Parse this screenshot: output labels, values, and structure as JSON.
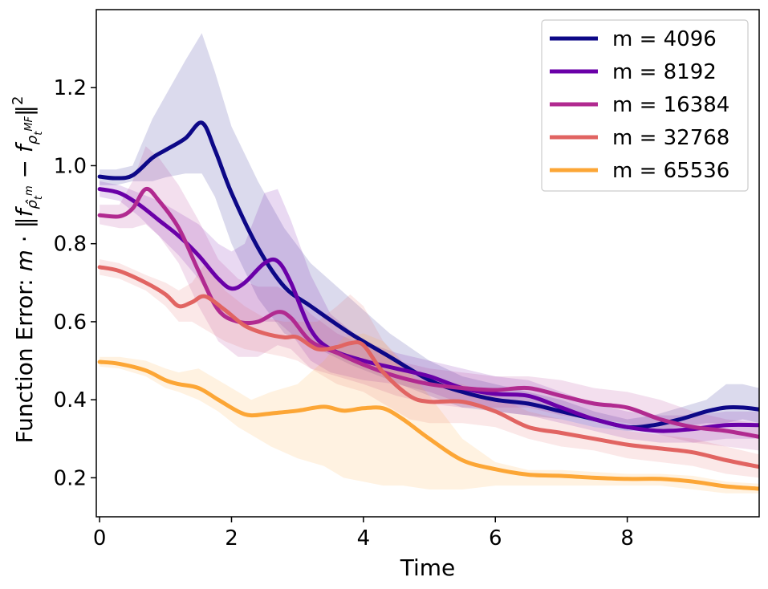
{
  "chart_data": {
    "type": "line",
    "title": "",
    "xlabel": "Time",
    "ylabel": "Function Error: m · ‖f_{ρ̂_t^m} − f_{ρ_t^{MF}}‖²",
    "ylabel_parts": {
      "prefix": "Function Error: ",
      "m": "m",
      "dot": " · ",
      "norm_open": "‖",
      "f1": "f",
      "rho1": "ρ̂",
      "rho1_sub": "t",
      "rho1_sup": "m",
      "minus": " − ",
      "f2": "f",
      "rho2": "ρ",
      "rho2_sub": "t",
      "rho2_sup": "MF",
      "norm_close": "‖",
      "square": "2"
    },
    "xlim": [
      -0.05,
      10.0
    ],
    "ylim": [
      0.1,
      1.4
    ],
    "xticks": [
      0,
      2,
      4,
      6,
      8
    ],
    "xtick_labels": [
      "0",
      "2",
      "4",
      "6",
      "8"
    ],
    "yticks": [
      0.2,
      0.4,
      0.6,
      0.8,
      1.0,
      1.2
    ],
    "ytick_labels": [
      "0.2",
      "0.4",
      "0.6",
      "0.8",
      "1.0",
      "1.2"
    ],
    "legend_position": "top-right",
    "series": [
      {
        "name": "m = 4096",
        "color": "#0d0887",
        "x": [
          0,
          0.25,
          0.5,
          0.8,
          1.0,
          1.3,
          1.55,
          1.75,
          2.0,
          2.4,
          2.8,
          3.2,
          3.8,
          4.4,
          5.0,
          5.5,
          6.0,
          6.5,
          7.0,
          7.5,
          8.0,
          8.4,
          8.8,
          9.2,
          9.5,
          9.75,
          10.0
        ],
        "y": [
          0.972,
          0.968,
          0.975,
          1.02,
          1.04,
          1.07,
          1.11,
          1.04,
          0.93,
          0.79,
          0.69,
          0.64,
          0.57,
          0.51,
          0.45,
          0.42,
          0.4,
          0.39,
          0.37,
          0.35,
          0.33,
          0.335,
          0.35,
          0.37,
          0.38,
          0.38,
          0.375
        ],
        "upper": [
          0.99,
          0.99,
          1.0,
          1.12,
          1.18,
          1.27,
          1.34,
          1.24,
          1.1,
          0.96,
          0.84,
          0.75,
          0.66,
          0.57,
          0.5,
          0.46,
          0.44,
          0.42,
          0.4,
          0.37,
          0.35,
          0.36,
          0.38,
          0.4,
          0.44,
          0.44,
          0.43
        ],
        "lower": [
          0.95,
          0.95,
          0.96,
          0.96,
          0.97,
          0.98,
          0.98,
          0.92,
          0.8,
          0.66,
          0.57,
          0.54,
          0.49,
          0.45,
          0.41,
          0.38,
          0.37,
          0.36,
          0.35,
          0.33,
          0.32,
          0.32,
          0.33,
          0.34,
          0.34,
          0.35,
          0.34
        ]
      },
      {
        "name": "m = 8192",
        "color": "#6a00a8",
        "x": [
          0,
          0.3,
          0.6,
          0.9,
          1.2,
          1.5,
          1.8,
          2.0,
          2.2,
          2.5,
          2.7,
          2.9,
          3.2,
          3.5,
          4.0,
          4.5,
          5.0,
          5.5,
          6.0,
          6.5,
          7.0,
          7.5,
          8.0,
          8.5,
          9.0,
          9.5,
          10.0
        ],
        "y": [
          0.94,
          0.93,
          0.9,
          0.86,
          0.82,
          0.77,
          0.71,
          0.685,
          0.7,
          0.75,
          0.755,
          0.7,
          0.58,
          0.53,
          0.5,
          0.48,
          0.46,
          0.43,
          0.415,
          0.41,
          0.38,
          0.35,
          0.33,
          0.32,
          0.325,
          0.335,
          0.335
        ],
        "upper": [
          0.96,
          0.95,
          0.93,
          0.91,
          0.88,
          0.85,
          0.8,
          0.78,
          0.8,
          0.93,
          0.94,
          0.86,
          0.72,
          0.62,
          0.55,
          0.52,
          0.5,
          0.48,
          0.46,
          0.45,
          0.42,
          0.39,
          0.37,
          0.36,
          0.36,
          0.37,
          0.37
        ],
        "lower": [
          0.92,
          0.91,
          0.87,
          0.82,
          0.77,
          0.71,
          0.63,
          0.6,
          0.6,
          0.6,
          0.6,
          0.57,
          0.5,
          0.47,
          0.45,
          0.44,
          0.42,
          0.39,
          0.37,
          0.36,
          0.34,
          0.32,
          0.3,
          0.29,
          0.29,
          0.3,
          0.3
        ]
      },
      {
        "name": "m = 16384",
        "color": "#b12a90",
        "x": [
          0,
          0.3,
          0.5,
          0.7,
          0.9,
          1.2,
          1.5,
          1.8,
          2.1,
          2.4,
          2.7,
          2.9,
          3.2,
          3.6,
          4.0,
          4.5,
          5.0,
          5.5,
          6.0,
          6.5,
          7.0,
          7.5,
          8.0,
          8.5,
          9.0,
          9.5,
          10.0
        ],
        "y": [
          0.873,
          0.87,
          0.89,
          0.94,
          0.91,
          0.84,
          0.73,
          0.63,
          0.6,
          0.6,
          0.625,
          0.61,
          0.55,
          0.52,
          0.49,
          0.46,
          0.44,
          0.43,
          0.425,
          0.43,
          0.41,
          0.39,
          0.38,
          0.35,
          0.33,
          0.32,
          0.305
        ],
        "upper": [
          0.9,
          0.9,
          0.96,
          1.05,
          1.02,
          0.95,
          0.86,
          0.76,
          0.71,
          0.69,
          0.69,
          0.67,
          0.62,
          0.57,
          0.54,
          0.5,
          0.48,
          0.47,
          0.46,
          0.46,
          0.45,
          0.43,
          0.42,
          0.4,
          0.37,
          0.35,
          0.34
        ],
        "lower": [
          0.85,
          0.84,
          0.84,
          0.85,
          0.82,
          0.75,
          0.64,
          0.55,
          0.51,
          0.51,
          0.54,
          0.53,
          0.48,
          0.46,
          0.44,
          0.41,
          0.39,
          0.38,
          0.38,
          0.38,
          0.36,
          0.35,
          0.34,
          0.31,
          0.29,
          0.28,
          0.27
        ]
      },
      {
        "name": "m = 32768",
        "color": "#e16462",
        "x": [
          0,
          0.3,
          0.7,
          1.0,
          1.2,
          1.4,
          1.6,
          1.9,
          2.2,
          2.5,
          2.8,
          3.0,
          3.3,
          3.6,
          3.8,
          4.0,
          4.3,
          4.7,
          5.0,
          5.5,
          6.0,
          6.5,
          7.0,
          7.5,
          8.0,
          8.5,
          9.0,
          9.5,
          10.0
        ],
        "y": [
          0.74,
          0.73,
          0.7,
          0.67,
          0.64,
          0.65,
          0.665,
          0.63,
          0.59,
          0.57,
          0.56,
          0.56,
          0.53,
          0.535,
          0.545,
          0.54,
          0.47,
          0.41,
          0.395,
          0.395,
          0.37,
          0.33,
          0.315,
          0.3,
          0.285,
          0.275,
          0.265,
          0.245,
          0.228
        ],
        "upper": [
          0.76,
          0.75,
          0.72,
          0.7,
          0.68,
          0.7,
          0.75,
          0.68,
          0.64,
          0.61,
          0.6,
          0.6,
          0.6,
          0.64,
          0.67,
          0.64,
          0.55,
          0.48,
          0.45,
          0.44,
          0.41,
          0.37,
          0.35,
          0.33,
          0.32,
          0.31,
          0.3,
          0.28,
          0.26
        ],
        "lower": [
          0.72,
          0.71,
          0.68,
          0.64,
          0.6,
          0.6,
          0.58,
          0.55,
          0.53,
          0.52,
          0.51,
          0.5,
          0.47,
          0.44,
          0.43,
          0.42,
          0.39,
          0.35,
          0.34,
          0.34,
          0.33,
          0.3,
          0.28,
          0.27,
          0.25,
          0.24,
          0.23,
          0.21,
          0.2
        ]
      },
      {
        "name": "m = 65536",
        "color": "#fca636",
        "x": [
          0,
          0.3,
          0.7,
          1.0,
          1.2,
          1.5,
          1.8,
          2.1,
          2.3,
          2.6,
          3.0,
          3.4,
          3.7,
          4.0,
          4.3,
          4.6,
          5.0,
          5.5,
          6.0,
          6.5,
          7.0,
          7.5,
          8.0,
          8.5,
          9.0,
          9.5,
          10.0
        ],
        "y": [
          0.497,
          0.492,
          0.475,
          0.45,
          0.44,
          0.43,
          0.4,
          0.37,
          0.36,
          0.365,
          0.372,
          0.382,
          0.372,
          0.378,
          0.378,
          0.35,
          0.3,
          0.245,
          0.222,
          0.208,
          0.205,
          0.2,
          0.197,
          0.197,
          0.19,
          0.178,
          0.172
        ],
        "upper": [
          0.51,
          0.51,
          0.5,
          0.48,
          0.47,
          0.48,
          0.45,
          0.42,
          0.4,
          0.42,
          0.44,
          0.5,
          0.56,
          0.57,
          0.55,
          0.49,
          0.41,
          0.3,
          0.24,
          0.22,
          0.22,
          0.215,
          0.21,
          0.21,
          0.205,
          0.19,
          0.185
        ],
        "lower": [
          0.485,
          0.48,
          0.46,
          0.43,
          0.42,
          0.4,
          0.37,
          0.33,
          0.31,
          0.28,
          0.25,
          0.23,
          0.2,
          0.19,
          0.18,
          0.18,
          0.17,
          0.17,
          0.18,
          0.18,
          0.18,
          0.18,
          0.18,
          0.18,
          0.17,
          0.16,
          0.16
        ]
      }
    ]
  }
}
